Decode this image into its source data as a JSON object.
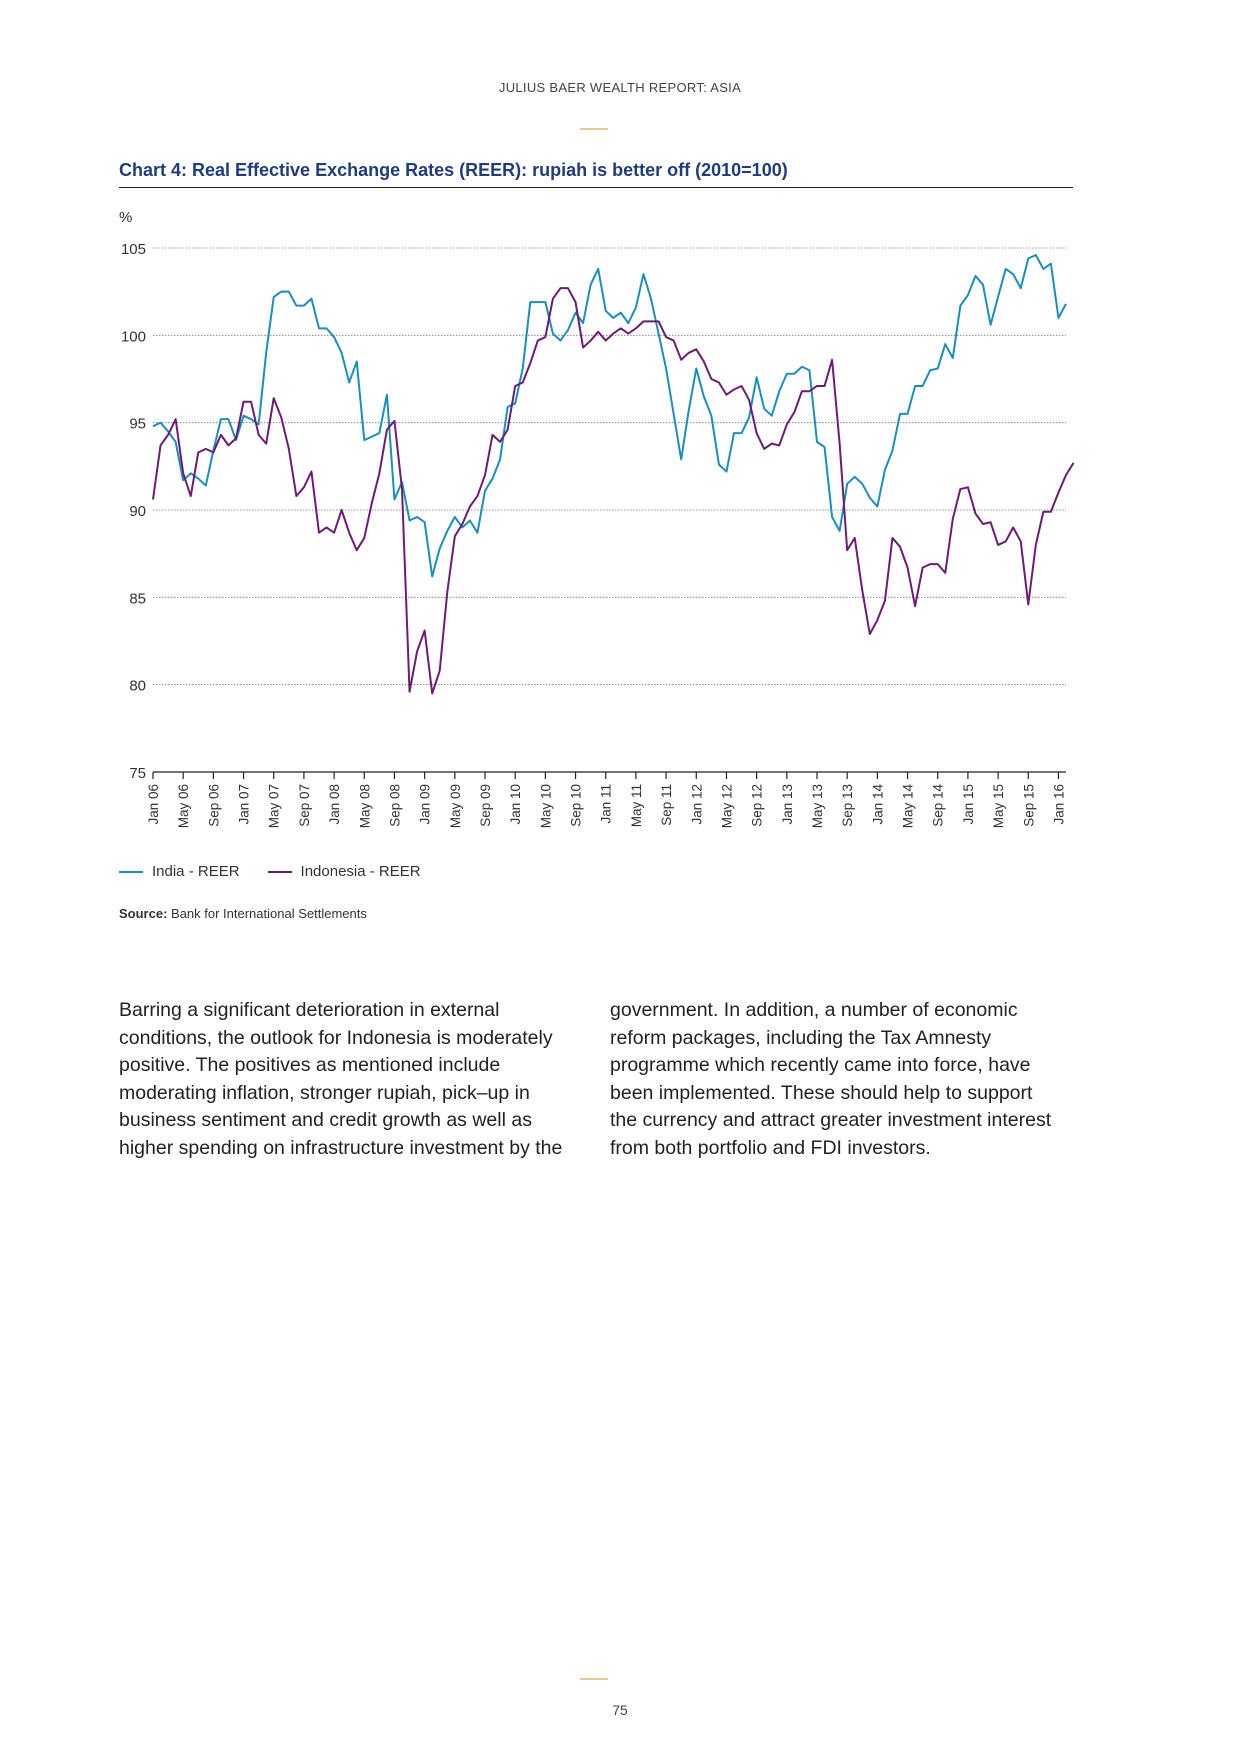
{
  "header": {
    "title": "JULIUS BAER WEALTH REPORT: ASIA"
  },
  "chart_title": "Chart 4: Real Effective Exchange Rates (REER): rupiah is better off (2010=100)",
  "chart_data": {
    "type": "line",
    "title": "Chart 4: Real Effective Exchange Rates (REER): rupiah is better off (2010=100)",
    "ylabel": "%",
    "xlabel": "",
    "ylim": [
      75,
      105
    ],
    "yticks": [
      75,
      80,
      85,
      90,
      95,
      100,
      105
    ],
    "grid": "horizontal dotted",
    "legend_position": "bottom-left",
    "x_start": "Jan 06",
    "x_end": "Jun 16",
    "xtick_labels": [
      "Jan 06",
      "May 06",
      "Sep 06",
      "Jan 07",
      "May 07",
      "Sep 07",
      "Jan 08",
      "May 08",
      "Sep 08",
      "Jan 09",
      "May 09",
      "Sep 09",
      "Jan 10",
      "May 10",
      "Sep 10",
      "Jan 11",
      "May 11",
      "Sep 11",
      "Jan 12",
      "May 12",
      "Sep 12",
      "Jan 13",
      "May 13",
      "Sep 13",
      "Jan 14",
      "May 14",
      "Sep 14",
      "Jan 15",
      "May 15",
      "Sep 15",
      "Jan 16"
    ],
    "series": [
      {
        "name": "India - REER",
        "color": "#1a8fbd",
        "values": [
          94.8,
          95.0,
          94.5,
          93.9,
          91.7,
          92.1,
          91.8,
          91.4,
          93.4,
          95.2,
          95.2,
          94.0,
          95.4,
          95.2,
          94.9,
          99.0,
          102.2,
          102.5,
          102.5,
          101.7,
          101.7,
          102.1,
          100.4,
          100.4,
          99.9,
          99.0,
          97.3,
          98.5,
          94.0,
          94.2,
          94.4,
          96.6,
          90.6,
          91.6,
          89.4,
          89.6,
          89.3,
          86.2,
          87.8,
          88.8,
          89.6,
          89.0,
          89.4,
          88.7,
          91.1,
          91.8,
          92.9,
          95.9,
          96.1,
          98.1,
          101.9,
          101.9,
          101.9,
          100.1,
          99.7,
          100.3,
          101.3,
          100.7,
          102.9,
          103.8,
          101.4,
          101.0,
          101.3,
          100.7,
          101.6,
          103.5,
          102.1,
          100.1,
          98.1,
          95.5,
          92.9,
          95.7,
          98.1,
          96.5,
          95.4,
          92.6,
          92.2,
          94.4,
          94.4,
          95.3,
          97.6,
          95.8,
          95.4,
          96.8,
          97.8,
          97.8,
          98.2,
          98.0,
          93.9,
          93.6,
          89.6,
          88.8,
          91.5,
          91.9,
          91.5,
          90.7,
          90.2,
          92.3,
          93.4,
          95.5,
          95.5,
          97.1,
          97.1,
          98.0,
          98.1,
          99.5,
          98.7,
          101.7,
          102.3,
          103.4,
          102.9,
          100.6,
          102.2,
          103.8,
          103.5,
          102.7,
          104.4,
          104.6,
          103.8,
          104.1,
          101.0,
          101.8
        ]
      },
      {
        "name": "Indonesia - REER",
        "color": "#6d1c74",
        "values": [
          90.6,
          93.7,
          94.3,
          95.2,
          92.1,
          90.8,
          93.3,
          93.5,
          93.3,
          94.3,
          93.7,
          94.1,
          96.2,
          96.2,
          94.3,
          93.8,
          96.4,
          95.3,
          93.5,
          90.8,
          91.3,
          92.2,
          88.7,
          89.0,
          88.7,
          90.0,
          88.7,
          87.7,
          88.4,
          90.4,
          92.1,
          94.6,
          95.1,
          91.2,
          79.6,
          81.9,
          83.1,
          79.5,
          80.8,
          85.3,
          88.5,
          89.2,
          90.2,
          90.8,
          92.0,
          94.3,
          93.9,
          94.6,
          97.1,
          97.3,
          98.4,
          99.7,
          99.9,
          102.1,
          102.7,
          102.7,
          101.9,
          99.3,
          99.7,
          100.2,
          99.7,
          100.1,
          100.4,
          100.1,
          100.4,
          100.8,
          100.8,
          100.8,
          99.9,
          99.7,
          98.6,
          99.0,
          99.2,
          98.5,
          97.5,
          97.3,
          96.6,
          96.9,
          97.1,
          96.3,
          94.4,
          93.5,
          93.8,
          93.7,
          94.9,
          95.6,
          96.8,
          96.8,
          97.1,
          97.1,
          98.6,
          93.8,
          87.7,
          88.4,
          85.4,
          82.9,
          83.7,
          84.8,
          88.4,
          87.9,
          86.7,
          84.5,
          86.7,
          86.9,
          86.9,
          86.4,
          89.5,
          91.2,
          91.3,
          89.8,
          89.2,
          89.3,
          88.0,
          88.2,
          89.0,
          88.2,
          84.6,
          88.0,
          89.9,
          89.9,
          91.0,
          92.0,
          92.7
        ]
      }
    ]
  },
  "legend": [
    {
      "label": "India - REER",
      "color": "#1a8fbd"
    },
    {
      "label": "Indonesia - REER",
      "color": "#6d1c74"
    }
  ],
  "source": {
    "label": "Source:",
    "text": " Bank for International Settlements"
  },
  "body": {
    "left": "Barring a significant deterioration in external conditions, the outlook for Indonesia is moderately positive. The positives as mentioned include moderating inflation, stronger rupiah, pick–up in business sentiment and credit growth as well as higher spending on infrastructure investment by the",
    "right": "government. In addition, a number of economic reform packages, including the Tax Amnesty programme which recently came into force, have been implemented. These should help to support the currency and attract greater investment interest from both portfolio and FDI investors."
  },
  "page_number": "75"
}
